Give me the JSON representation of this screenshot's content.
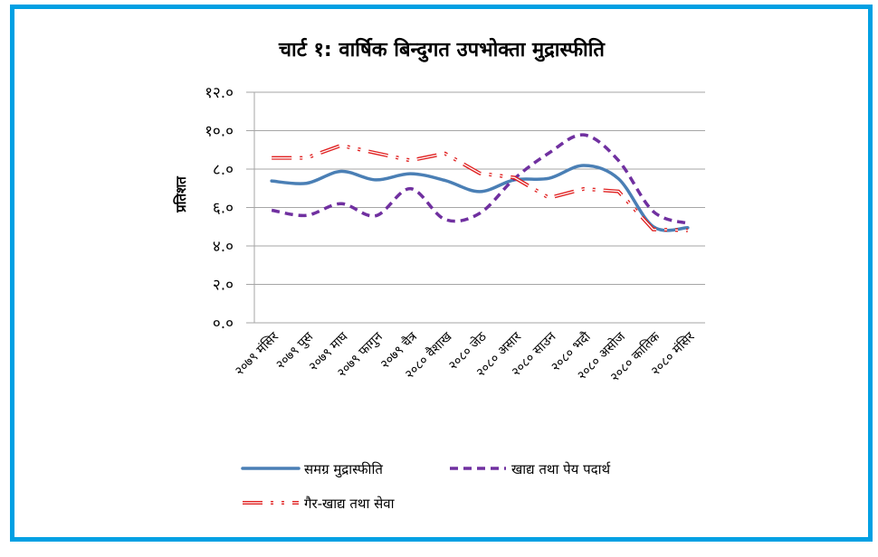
{
  "chart_data": {
    "type": "line",
    "title": "चार्ट १: वार्षिक बिन्दुगत उपभोक्ता मुद्रास्फीति",
    "ylabel": "प्रतिशत",
    "xlabel": "",
    "ylim": [
      0,
      12
    ],
    "yticks": [
      "०.०",
      "२.०",
      "४.०",
      "६.०",
      "८.०",
      "१०.०",
      "१२.०"
    ],
    "grid": true,
    "legend_position": "bottom",
    "categories": [
      "२०७९ मंसिर",
      "२०७९ पुस",
      "२०७९ माघ",
      "२०७९ फागुन",
      "२०७९ चैत्र",
      "२०८० वैशाख",
      "२०८० जेठ",
      "२०८० असार",
      "२०८० साउन",
      "२०८० भदौ",
      "२०८० असोज",
      "२०८० कातिक",
      "२०८० मंसिर"
    ],
    "series": [
      {
        "name": "समग्र मुद्रास्फीति",
        "color": "#4a7fb5",
        "style": "solid",
        "values": [
          7.38,
          7.26,
          7.88,
          7.44,
          7.76,
          7.41,
          6.83,
          7.44,
          7.52,
          8.19,
          7.5,
          5.01,
          4.95
        ]
      },
      {
        "name": "खाद्य तथा पेय पदार्थ",
        "color": "#7030a0",
        "style": "dashed",
        "values": [
          5.86,
          5.59,
          6.2,
          5.57,
          6.98,
          5.38,
          5.7,
          7.5,
          8.84,
          9.78,
          8.45,
          5.8,
          5.17
        ]
      },
      {
        "name": "गैर-खाद्य तथा सेवा",
        "color": "#e02020",
        "style": "double-dash-dot",
        "values": [
          8.58,
          8.58,
          9.23,
          8.84,
          8.45,
          8.81,
          7.78,
          7.56,
          6.5,
          6.97,
          6.84,
          4.86,
          4.81
        ]
      }
    ]
  }
}
